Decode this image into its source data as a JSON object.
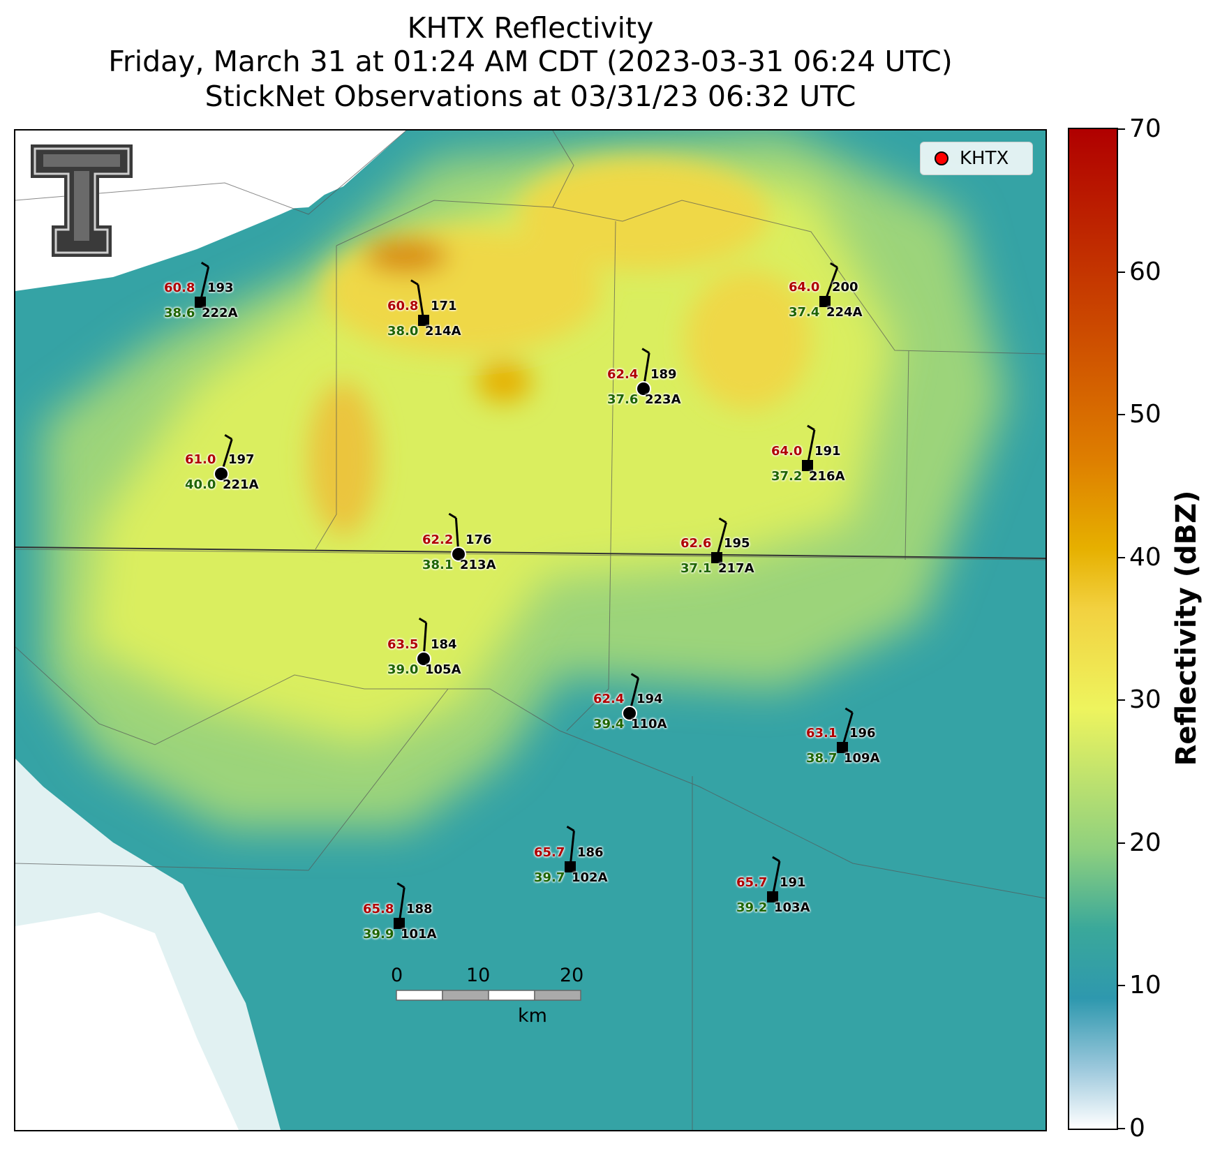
{
  "title": {
    "line1": "KHTX Reflectivity",
    "line2": "Friday, March 31 at 01:24 AM CDT (2023-03-31 06:24 UTC)",
    "line3": "StickNet Observations at 03/31/23 06:32 UTC"
  },
  "legend": {
    "label": "KHTX",
    "marker_color": "#ff0000"
  },
  "colorbar": {
    "label": "Reflectivity (dBZ)",
    "ticks": [
      "0",
      "10",
      "20",
      "30",
      "40",
      "50",
      "60",
      "70"
    ],
    "range": [
      0,
      70
    ]
  },
  "scale_bar": {
    "ticks": [
      "0",
      "10",
      "20"
    ],
    "unit": "km"
  },
  "stations": [
    {
      "id": "222A",
      "temp": "60.8",
      "dew": "38.6",
      "dir": "193"
    },
    {
      "id": "214A",
      "temp": "60.8",
      "dew": "38.0",
      "dir": "171"
    },
    {
      "id": "223A",
      "temp": "62.4",
      "dew": "37.6",
      "dir": "189"
    },
    {
      "id": "224A",
      "temp": "64.0",
      "dew": "37.4",
      "dir": "200"
    },
    {
      "id": "221A",
      "temp": "61.0",
      "dew": "40.0",
      "dir": "197"
    },
    {
      "id": "216A",
      "temp": "64.0",
      "dew": "37.2",
      "dir": "191"
    },
    {
      "id": "213A",
      "temp": "62.2",
      "dew": "38.1",
      "dir": "176"
    },
    {
      "id": "217A",
      "temp": "62.6",
      "dew": "37.1",
      "dir": "195"
    },
    {
      "id": "105A",
      "temp": "63.5",
      "dew": "39.0",
      "dir": "184"
    },
    {
      "id": "110A",
      "temp": "62.4",
      "dew": "39.4",
      "dir": "194"
    },
    {
      "id": "109A",
      "temp": "63.1",
      "dew": "38.7",
      "dir": "196"
    },
    {
      "id": "102A",
      "temp": "65.7",
      "dew": "39.7",
      "dir": "186"
    },
    {
      "id": "103A",
      "temp": "65.7",
      "dew": "39.2",
      "dir": "191"
    },
    {
      "id": "101A",
      "temp": "65.8",
      "dew": "39.9",
      "dir": "188"
    }
  ]
}
